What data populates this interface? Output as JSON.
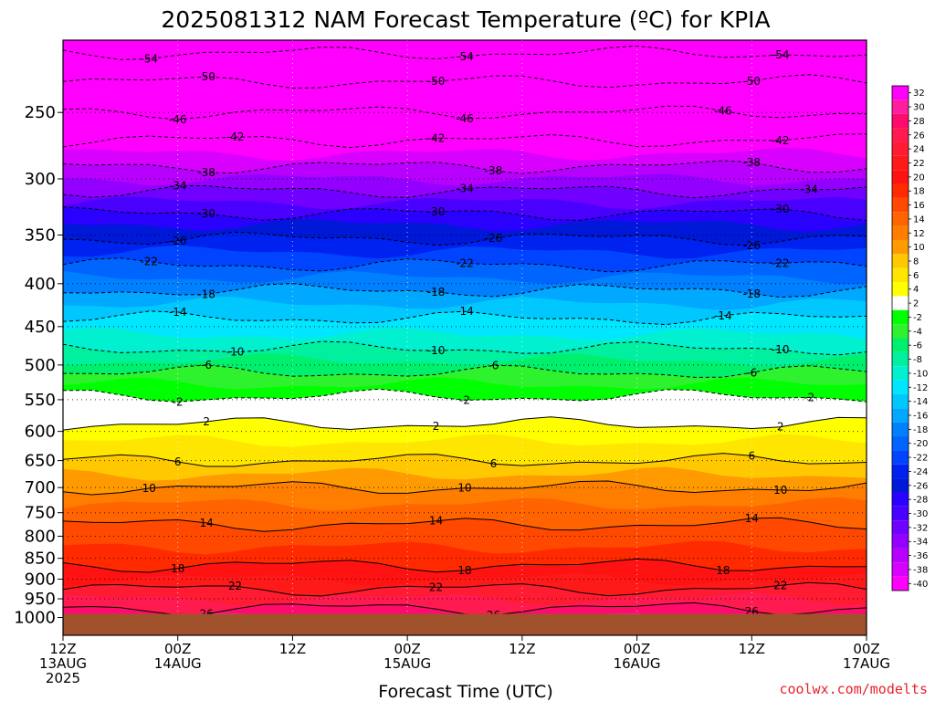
{
  "chart_data": {
    "type": "heatmap",
    "title": "2025081312 NAM Forecast Temperature (ºC) for KPIA",
    "xlabel": "Forecast Time (UTC)",
    "ylabel": "",
    "x_ticks": [
      {
        "hour": 0,
        "line1": "12Z",
        "line2": "13AUG",
        "line3": "2025"
      },
      {
        "hour": 12,
        "line1": "00Z",
        "line2": "14AUG",
        "line3": ""
      },
      {
        "hour": 24,
        "line1": "12Z",
        "line2": "",
        "line3": ""
      },
      {
        "hour": 36,
        "line1": "00Z",
        "line2": "15AUG",
        "line3": ""
      },
      {
        "hour": 48,
        "line1": "12Z",
        "line2": "",
        "line3": ""
      },
      {
        "hour": 60,
        "line1": "00Z",
        "line2": "16AUG",
        "line3": ""
      },
      {
        "hour": 72,
        "line1": "12Z",
        "line2": "",
        "line3": ""
      },
      {
        "hour": 84,
        "line1": "00Z",
        "line2": "17AUG",
        "line3": ""
      }
    ],
    "xlim": [
      0,
      84
    ],
    "y_ticks": [
      250,
      300,
      350,
      400,
      450,
      500,
      550,
      600,
      650,
      700,
      750,
      800,
      850,
      900,
      950,
      1000
    ],
    "y_scale": "log-pressure",
    "y_top_hpa": 205,
    "y_bottom_hpa": 1050,
    "surface_hpa": 990,
    "surface_color": "#a0522d",
    "temperature_profile": [
      {
        "p": 205,
        "t": -56
      },
      {
        "p": 220,
        "t": -52
      },
      {
        "p": 240,
        "t": -48
      },
      {
        "p": 260,
        "t": -44
      },
      {
        "p": 280,
        "t": -40
      },
      {
        "p": 300,
        "t": -36
      },
      {
        "p": 320,
        "t": -32
      },
      {
        "p": 340,
        "t": -28
      },
      {
        "p": 360,
        "t": -25
      },
      {
        "p": 380,
        "t": -22
      },
      {
        "p": 400,
        "t": -19
      },
      {
        "p": 430,
        "t": -15
      },
      {
        "p": 470,
        "t": -11
      },
      {
        "p": 510,
        "t": -6
      },
      {
        "p": 545,
        "t": -2
      },
      {
        "p": 565,
        "t": 0
      },
      {
        "p": 600,
        "t": 3
      },
      {
        "p": 650,
        "t": 6
      },
      {
        "p": 700,
        "t": 10
      },
      {
        "p": 750,
        "t": 13
      },
      {
        "p": 800,
        "t": 15
      },
      {
        "p": 850,
        "t": 17
      },
      {
        "p": 900,
        "t": 20
      },
      {
        "p": 950,
        "t": 24
      },
      {
        "p": 1000,
        "t": 28
      }
    ],
    "colorbar": {
      "labels": [
        "32",
        "30",
        "28",
        "26",
        "24",
        "22",
        "20",
        "18",
        "16",
        "14",
        "12",
        "10",
        "8",
        "6",
        "4",
        "2",
        "-2",
        "-4",
        "-6",
        "-8",
        "-10",
        "-12",
        "-14",
        "-16",
        "-18",
        "-20",
        "-22",
        "-24",
        "-26",
        "-28",
        "-30",
        "-32",
        "-34",
        "-36",
        "-38",
        "-40"
      ],
      "colors": [
        "#ff00ff",
        "#ff1f9e",
        "#ff0b6e",
        "#ff1a50",
        "#ff1c33",
        "#ff1a1a",
        "#ff1212",
        "#ff2a00",
        "#ff4800",
        "#ff6400",
        "#ff7e00",
        "#ff9a00",
        "#ffc800",
        "#ffe600",
        "#ffff00",
        "#ffffff",
        "#00ff00",
        "#2ef22e",
        "#00f06e",
        "#00f0a0",
        "#00f0d0",
        "#00e6ff",
        "#00c8ff",
        "#00a8ff",
        "#0080ff",
        "#0064ff",
        "#0044ff",
        "#0022f0",
        "#0018d8",
        "#2a00ff",
        "#4a00ff",
        "#7000ff",
        "#9400ff",
        "#b800ff",
        "#d800ff",
        "#ff00ff"
      ]
    },
    "contour_labels": [
      "-54",
      "-50",
      "-46",
      "-42",
      "-38",
      "-34",
      "-30",
      "-26",
      "-22",
      "-18",
      "-14",
      "-10",
      "-6",
      "-2",
      "2",
      "6",
      "10",
      "14",
      "18",
      "22",
      "26"
    ],
    "credit": "coolwx.com/modelts"
  }
}
